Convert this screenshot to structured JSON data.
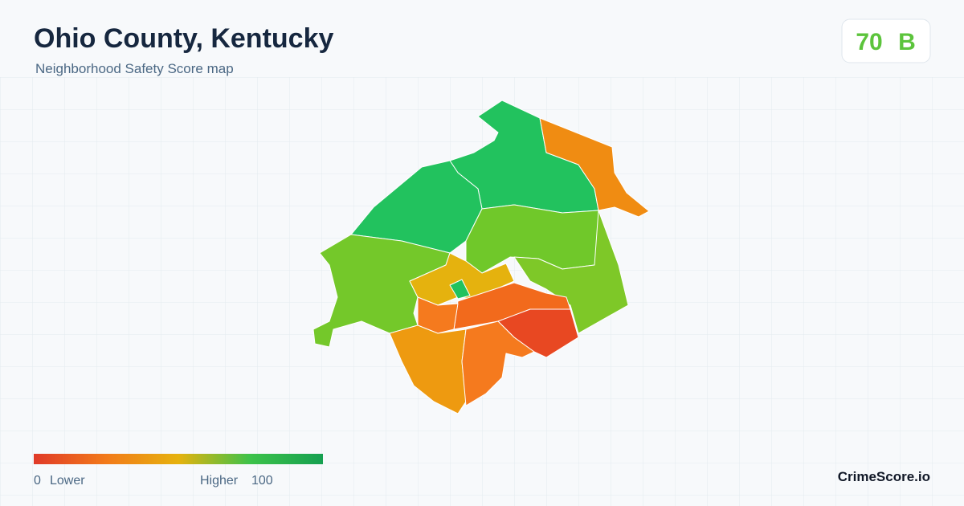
{
  "header": {
    "title": "Ohio County, Kentucky",
    "subtitle": "Neighborhood Safety Score map"
  },
  "score": {
    "value": "70",
    "grade": "B"
  },
  "legend": {
    "min": "0",
    "min_label": "Lower",
    "max_label": "Higher",
    "max": "100"
  },
  "brand": "CrimeScore.io"
}
